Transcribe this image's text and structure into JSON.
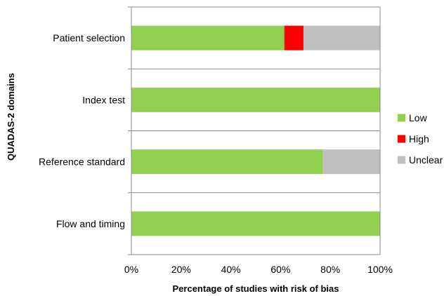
{
  "chart_data": {
    "type": "bar",
    "orientation": "horizontal",
    "stacked": true,
    "title": "",
    "xlabel": "Percentage of studies with risk of bias",
    "ylabel": "QUADAS-2 domains",
    "xlim": [
      0,
      100
    ],
    "x_ticks": [
      0,
      20,
      40,
      60,
      80,
      100
    ],
    "x_tick_suffix": "%",
    "categories": [
      "Patient selection",
      "Index test",
      "Reference standard",
      "Flow and timing"
    ],
    "series": [
      {
        "name": "Low",
        "color": "#92D050",
        "values": [
          61.5,
          100,
          77,
          100
        ]
      },
      {
        "name": "High",
        "color": "#FF0000",
        "values": [
          7.7,
          0,
          0,
          0
        ]
      },
      {
        "name": "Unclear",
        "color": "#BFBFBF",
        "values": [
          30.8,
          0,
          23,
          0
        ]
      }
    ],
    "grid": true,
    "legend_position": "right"
  }
}
